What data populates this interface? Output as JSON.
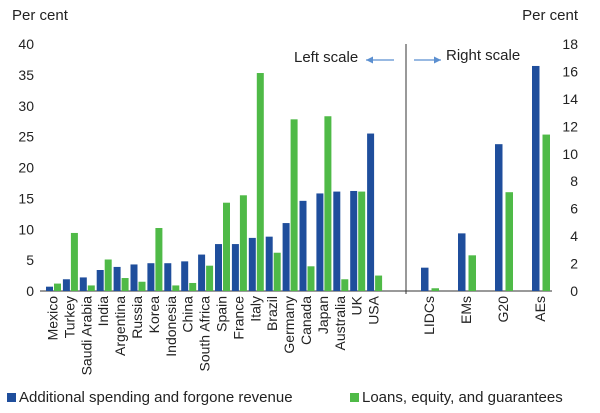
{
  "chart_data": {
    "type": "bar",
    "left_panel": {
      "unit_label": "Per cent",
      "ylim": [
        0,
        40
      ],
      "yticks": [
        "0",
        "5",
        "10",
        "15",
        "20",
        "25",
        "30",
        "35",
        "40"
      ],
      "scale_note": "Left scale",
      "categories": [
        "Mexico",
        "Turkey",
        "Saudi Arabia",
        "India",
        "Argentina",
        "Russia",
        "Korea",
        "Indonesia",
        "China",
        "South Africa",
        "Spain",
        "France",
        "Italy",
        "Brazil",
        "Germany",
        "Canada",
        "Japan",
        "Australia",
        "UK",
        "USA"
      ],
      "series": [
        {
          "name": "Additional spending and forgone revenue",
          "values": [
            0.7,
            1.9,
            2.2,
            3.4,
            3.9,
            4.3,
            4.5,
            4.5,
            4.8,
            5.9,
            7.6,
            7.6,
            8.6,
            8.8,
            11.0,
            14.6,
            15.8,
            16.1,
            16.2,
            25.5
          ]
        },
        {
          "name": "Loans, equity, and guarantees",
          "values": [
            1.2,
            9.4,
            0.9,
            5.1,
            2.1,
            1.5,
            10.2,
            0.9,
            1.3,
            4.1,
            14.3,
            15.5,
            35.3,
            6.2,
            27.8,
            4.0,
            28.3,
            1.9,
            16.1,
            2.5
          ]
        }
      ]
    },
    "right_panel": {
      "unit_label": "Per cent",
      "ylim": [
        0,
        18
      ],
      "yticks": [
        "0",
        "2",
        "4",
        "6",
        "8",
        "10",
        "12",
        "14",
        "16",
        "18"
      ],
      "scale_note": "Right scale",
      "categories": [
        "LIDCs",
        "EMs",
        "G20",
        "AEs"
      ],
      "series": [
        {
          "name": "Additional spending and forgone revenue",
          "values": [
            1.7,
            4.2,
            10.7,
            16.4
          ]
        },
        {
          "name": "Loans, equity, and guarantees",
          "values": [
            0.2,
            2.6,
            7.2,
            11.4
          ]
        }
      ]
    },
    "legend": {
      "position": "bottom",
      "entries": [
        "Additional spending and forgone revenue",
        "Loans, equity, and guarantees"
      ]
    },
    "colors": {
      "spending": "#1f4e9c",
      "loans": "#4fba47",
      "axis": "#333333"
    }
  }
}
